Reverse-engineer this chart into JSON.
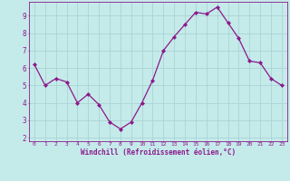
{
  "x": [
    0,
    1,
    2,
    3,
    4,
    5,
    6,
    7,
    8,
    9,
    10,
    11,
    12,
    13,
    14,
    15,
    16,
    17,
    18,
    19,
    20,
    21,
    22,
    23
  ],
  "y": [
    6.2,
    5.0,
    5.4,
    5.2,
    4.0,
    4.5,
    3.9,
    2.9,
    2.5,
    2.9,
    4.0,
    5.3,
    7.0,
    7.8,
    8.5,
    9.2,
    9.1,
    9.5,
    8.6,
    7.7,
    6.4,
    6.3,
    5.4,
    5.0
  ],
  "line_color": "#8b1a8b",
  "marker": "D",
  "marker_size": 2.0,
  "bg_color": "#c5eaea",
  "grid_color": "#aad4d4",
  "xlabel": "Windchill (Refroidissement éolien,°C)",
  "xlabel_color": "#8b1a8b",
  "tick_color": "#8b1a8b",
  "ylim": [
    1.8,
    9.8
  ],
  "xlim": [
    -0.5,
    23.5
  ],
  "yticks": [
    2,
    3,
    4,
    5,
    6,
    7,
    8,
    9
  ],
  "xticks": [
    0,
    1,
    2,
    3,
    4,
    5,
    6,
    7,
    8,
    9,
    10,
    11,
    12,
    13,
    14,
    15,
    16,
    17,
    18,
    19,
    20,
    21,
    22,
    23
  ],
  "spine_color": "#8b1a8b"
}
